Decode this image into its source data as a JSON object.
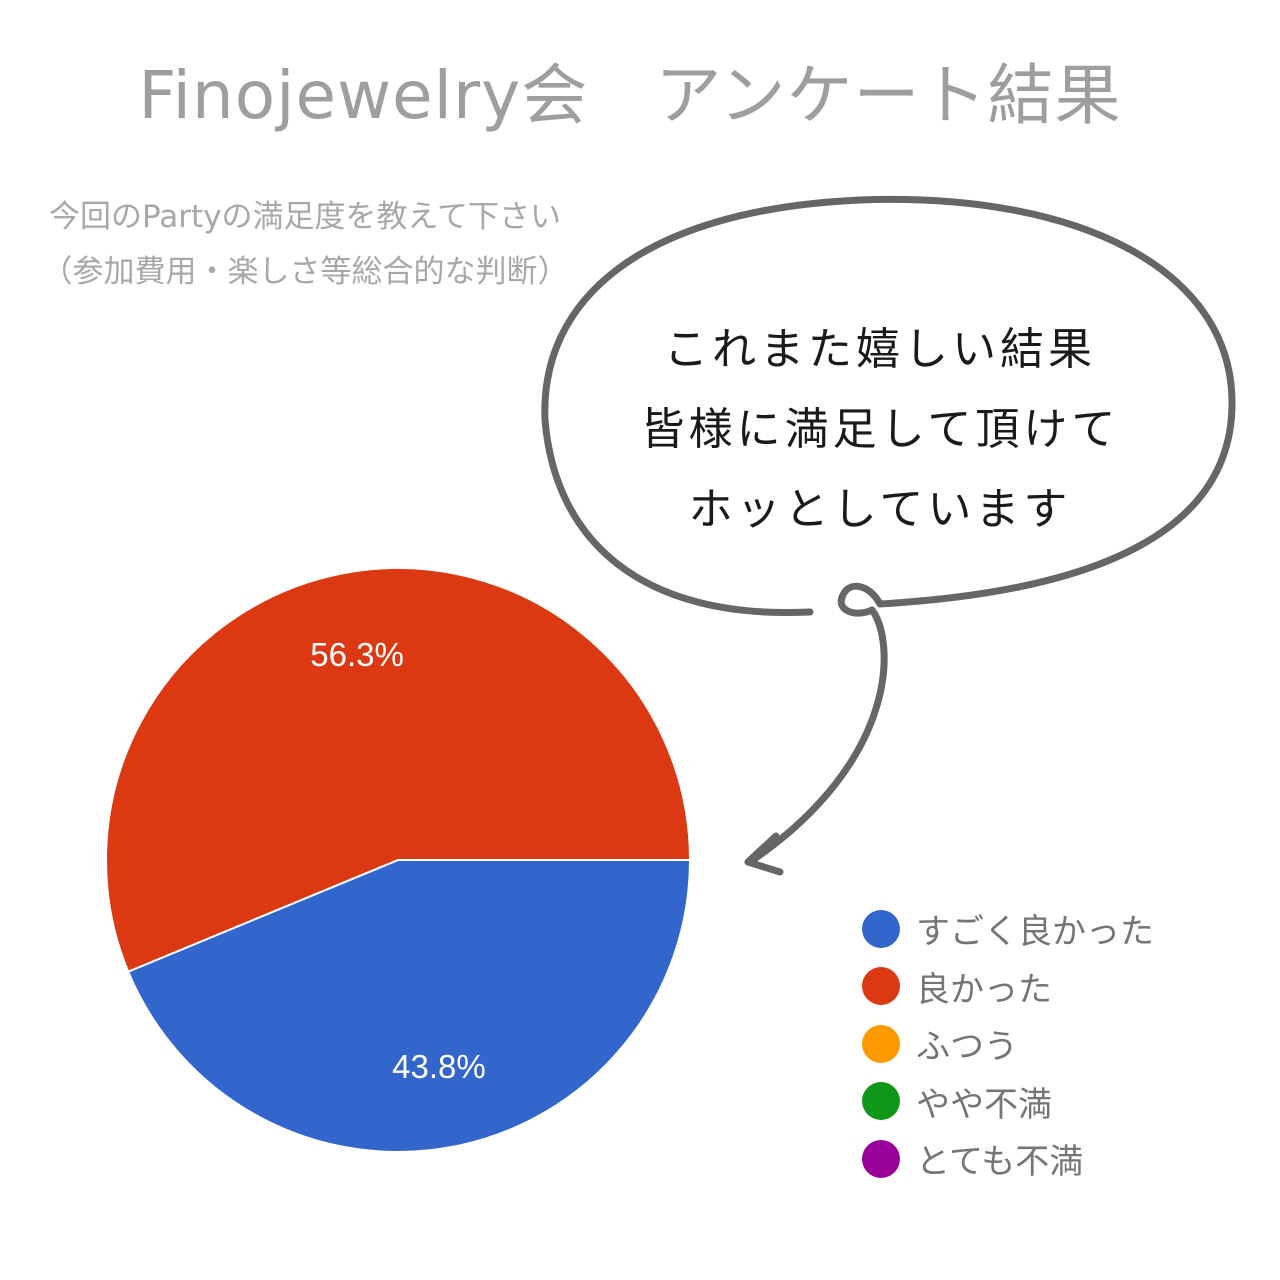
{
  "title": "Finojewelry会　アンケート結果",
  "question": "今回のPartyの満足度を教えて下さい（参加費用・楽しさ等総合的な判断）",
  "bubble": {
    "lines": [
      "これまた嬉しい結果",
      "皆様に満足して頂けて",
      "ホッとしています"
    ]
  },
  "chart_data": {
    "type": "pie",
    "title": "今回のPartyの満足度を教えて下さい（参加費用・楽しさ等総合的な判断）",
    "legend_position": "right-bottom",
    "categories": [
      "すごく良かった",
      "良かった",
      "ふつう",
      "やや不満",
      "とても不満"
    ],
    "values": [
      43.8,
      56.3,
      0,
      0,
      0
    ],
    "labels": [
      "43.8%",
      "56.3%",
      "",
      "",
      ""
    ],
    "colors": [
      "#3366cc",
      "#dc3912",
      "#ff9900",
      "#109618",
      "#990099"
    ]
  }
}
